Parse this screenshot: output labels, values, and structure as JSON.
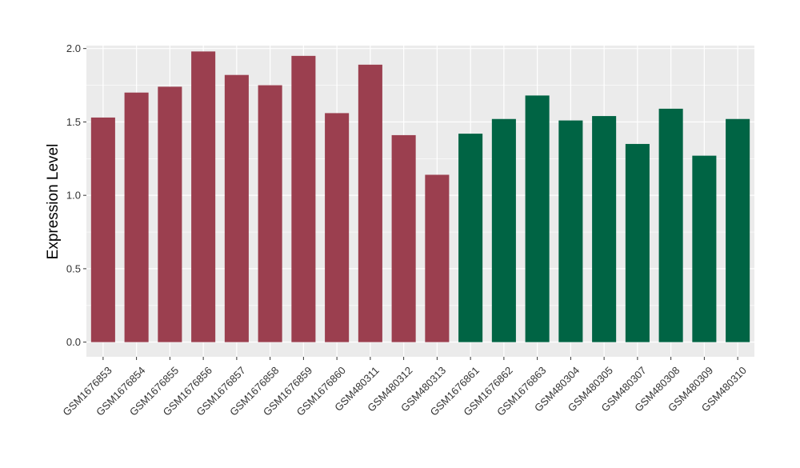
{
  "chart_data": {
    "type": "bar",
    "title": "",
    "xlabel": "",
    "ylabel": "Expression Level",
    "ylim": [
      -0.1,
      2.02
    ],
    "yticks": [
      0.0,
      0.5,
      1.0,
      1.5,
      2.0
    ],
    "ytick_labels": [
      "0.0",
      "0.5",
      "1.0",
      "1.5",
      "2.0"
    ],
    "grid": true,
    "legend": "none",
    "panel_background": "#ebebeb",
    "gridline_color": "#ffffff",
    "categories": [
      "GSM1676853",
      "GSM1676854",
      "GSM1676855",
      "GSM1676856",
      "GSM1676857",
      "GSM1676858",
      "GSM1676859",
      "GSM1676860",
      "GSM480311",
      "GSM480312",
      "GSM480313",
      "GSM1676861",
      "GSM1676862",
      "GSM1676863",
      "GSM480304",
      "GSM480305",
      "GSM480307",
      "GSM480308",
      "GSM480309",
      "GSM480310"
    ],
    "values": [
      1.53,
      1.7,
      1.74,
      1.98,
      1.82,
      1.75,
      1.95,
      1.56,
      1.89,
      1.41,
      1.14,
      1.42,
      1.52,
      1.68,
      1.51,
      1.54,
      1.35,
      1.59,
      1.27,
      1.52
    ],
    "bar_colors": [
      "#9b3f4f",
      "#9b3f4f",
      "#9b3f4f",
      "#9b3f4f",
      "#9b3f4f",
      "#9b3f4f",
      "#9b3f4f",
      "#9b3f4f",
      "#9b3f4f",
      "#9b3f4f",
      "#9b3f4f",
      "#006444",
      "#006444",
      "#006444",
      "#006444",
      "#006444",
      "#006444",
      "#006444",
      "#006444",
      "#006444"
    ]
  }
}
